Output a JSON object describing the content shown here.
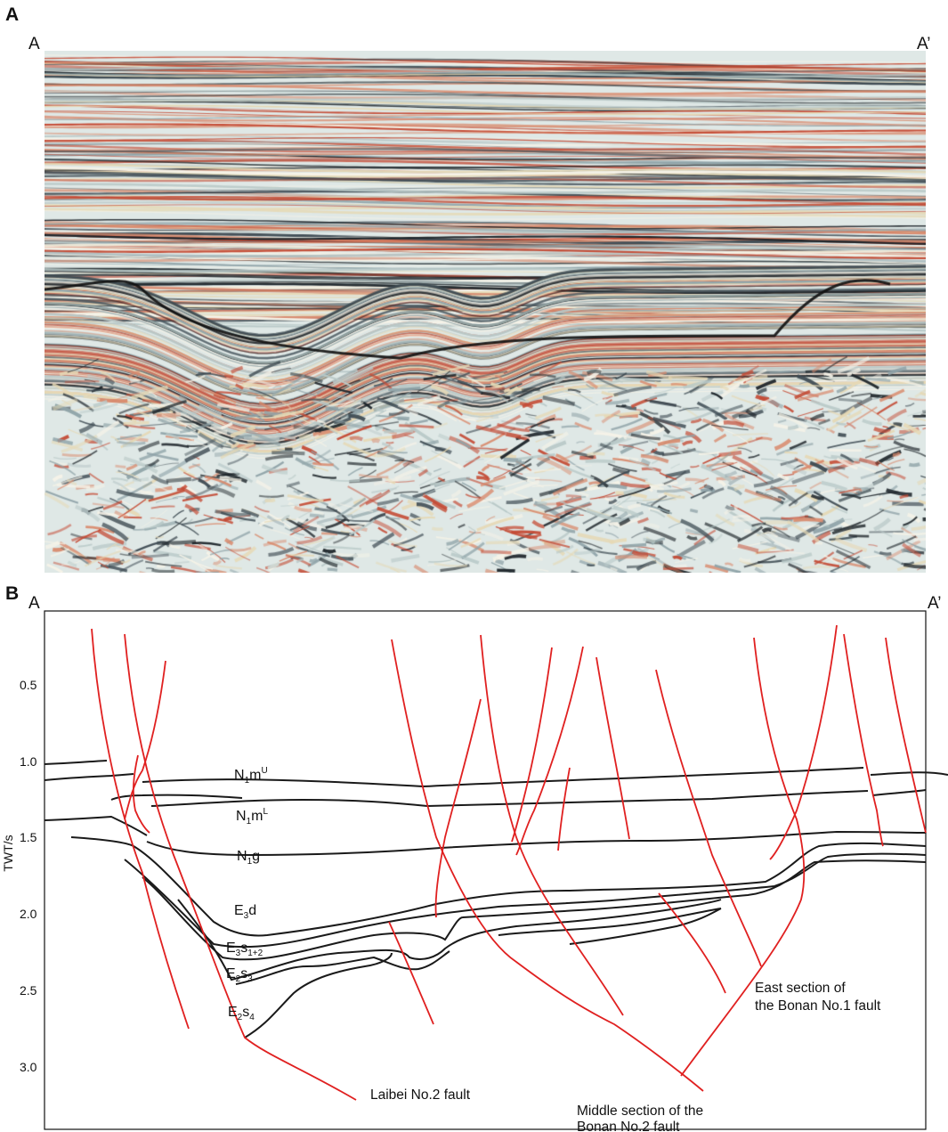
{
  "panel_a": {
    "label": "A",
    "left_endpoint": "A",
    "right_endpoint": "A’"
  },
  "panel_b": {
    "label": "B",
    "left_endpoint": "A",
    "right_endpoint": "A’",
    "y_axis_label": "TWT/s",
    "y_ticks": [
      "0.5",
      "1.0",
      "1.5",
      "2.0",
      "2.5",
      "3.0"
    ],
    "formations": [
      {
        "base": "N",
        "sub1": "1",
        "mid": "m",
        "sup": "U"
      },
      {
        "base": "N",
        "sub1": "1",
        "mid": "m",
        "sup": "L"
      },
      {
        "base": "N",
        "sub1": "1",
        "mid": "g",
        "sup": ""
      },
      {
        "base": "E",
        "sub1": "3",
        "mid": "d",
        "sup": ""
      },
      {
        "base": "E",
        "sub1": "3",
        "mid": "s",
        "sub2": "1+2"
      },
      {
        "base": "E",
        "sub1": "2",
        "mid": "s",
        "sub2": "3"
      },
      {
        "base": "E",
        "sub1": "2",
        "mid": "s",
        "sub2": "4"
      }
    ],
    "annotations": {
      "east_fault_line1": "East section of",
      "east_fault_line2": "the Bonan No.1 fault",
      "laibei_fault": "Laibei No.2 fault",
      "middle_fault_line1": "Middle section of the",
      "middle_fault_line2": "Bonan No.2 fault"
    },
    "colors": {
      "fault": "#e02020",
      "horizon": "#1a1a1a"
    }
  }
}
